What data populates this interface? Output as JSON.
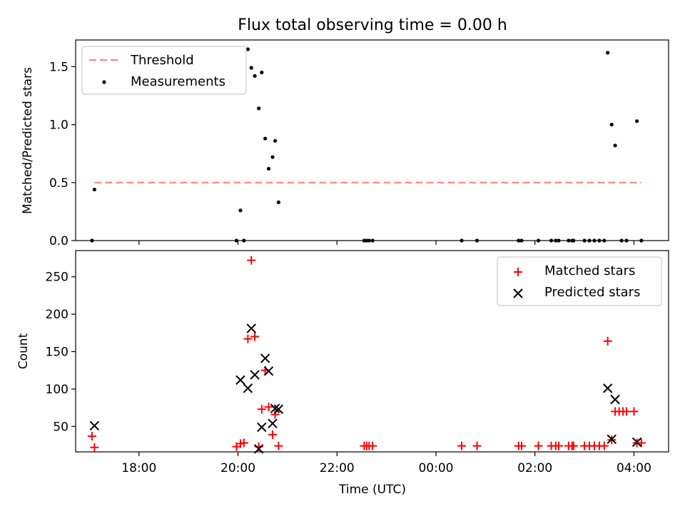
{
  "chart_data": [
    {
      "type": "scatter",
      "title": "Flux total observing time = 0.00 h",
      "ylabel": "Matched/Predicted stars",
      "xlabel": "",
      "xlim": [
        16.72,
        28.7
      ],
      "ylim": [
        0,
        1.73
      ],
      "yticks": [
        0.0,
        0.5,
        1.0,
        1.5
      ],
      "ytick_labels": [
        "0.0",
        "0.5",
        "1.0",
        "1.5"
      ],
      "legend_position": "upper left",
      "series": [
        {
          "name": "Threshold",
          "kind": "line",
          "color": "#ff7f7f",
          "style": "dashed",
          "x": [
            17.1,
            28.15
          ],
          "y": [
            0.5,
            0.5
          ]
        },
        {
          "name": "Measurements",
          "kind": "points",
          "color": "#000000",
          "points": [
            [
              17.05,
              0.0
            ],
            [
              17.1,
              0.44
            ],
            [
              19.97,
              0.0
            ],
            [
              20.05,
              0.26
            ],
            [
              20.12,
              0.0
            ],
            [
              20.2,
              1.65
            ],
            [
              20.27,
              1.49
            ],
            [
              20.34,
              1.42
            ],
            [
              20.42,
              1.14
            ],
            [
              20.48,
              1.45
            ],
            [
              20.55,
              0.88
            ],
            [
              20.62,
              0.62
            ],
            [
              20.7,
              0.72
            ],
            [
              20.75,
              0.86
            ],
            [
              20.82,
              0.33
            ],
            [
              22.55,
              0.0
            ],
            [
              22.6,
              0.0
            ],
            [
              22.65,
              0.0
            ],
            [
              22.72,
              0.0
            ],
            [
              24.52,
              0.0
            ],
            [
              24.83,
              0.0
            ],
            [
              25.67,
              0.0
            ],
            [
              25.73,
              0.0
            ],
            [
              26.07,
              0.0
            ],
            [
              26.33,
              0.0
            ],
            [
              26.42,
              0.0
            ],
            [
              26.48,
              0.0
            ],
            [
              26.68,
              0.0
            ],
            [
              26.75,
              0.0
            ],
            [
              26.78,
              0.0
            ],
            [
              27.0,
              0.0
            ],
            [
              27.1,
              0.0
            ],
            [
              27.2,
              0.0
            ],
            [
              27.3,
              0.0
            ],
            [
              27.4,
              0.0
            ],
            [
              27.47,
              1.62
            ],
            [
              27.55,
              1.0
            ],
            [
              27.62,
              0.82
            ],
            [
              27.75,
              0.0
            ],
            [
              27.85,
              0.0
            ],
            [
              28.06,
              1.03
            ],
            [
              28.15,
              0.0
            ]
          ]
        }
      ]
    },
    {
      "type": "scatter",
      "title": "",
      "ylabel": "Count",
      "xlabel": "Time (UTC)",
      "xlim": [
        16.72,
        28.7
      ],
      "ylim": [
        16,
        285
      ],
      "yticks": [
        50,
        100,
        150,
        200,
        250
      ],
      "ytick_labels": [
        "50",
        "100",
        "150",
        "200",
        "250"
      ],
      "xticks": [
        18,
        20,
        22,
        24,
        26,
        28
      ],
      "xtick_labels": [
        "18:00",
        "20:00",
        "22:00",
        "00:00",
        "02:00",
        "04:00"
      ],
      "legend_position": "upper right",
      "series": [
        {
          "name": "Matched stars",
          "marker": "plus",
          "color": "#ff0000",
          "points": [
            [
              17.05,
              37
            ],
            [
              17.1,
              22
            ],
            [
              19.97,
              23
            ],
            [
              20.05,
              27
            ],
            [
              20.12,
              28
            ],
            [
              20.2,
              167
            ],
            [
              20.27,
              272
            ],
            [
              20.34,
              170
            ],
            [
              20.42,
              23
            ],
            [
              20.48,
              73
            ],
            [
              20.55,
              125
            ],
            [
              20.62,
              76
            ],
            [
              20.7,
              39
            ],
            [
              20.75,
              66
            ],
            [
              20.82,
              24
            ],
            [
              22.55,
              24
            ],
            [
              22.6,
              24
            ],
            [
              22.65,
              24
            ],
            [
              22.72,
              24
            ],
            [
              24.52,
              24
            ],
            [
              24.83,
              24
            ],
            [
              25.67,
              24
            ],
            [
              25.73,
              24
            ],
            [
              26.07,
              24
            ],
            [
              26.33,
              24
            ],
            [
              26.42,
              24
            ],
            [
              26.48,
              24
            ],
            [
              26.68,
              24
            ],
            [
              26.75,
              24
            ],
            [
              26.78,
              24
            ],
            [
              27.0,
              24
            ],
            [
              27.1,
              24
            ],
            [
              27.2,
              24
            ],
            [
              27.3,
              24
            ],
            [
              27.4,
              24
            ],
            [
              27.47,
              164
            ],
            [
              27.55,
              32
            ],
            [
              27.62,
              70
            ],
            [
              27.7,
              70
            ],
            [
              27.78,
              70
            ],
            [
              27.85,
              70
            ],
            [
              28.0,
              70
            ],
            [
              28.06,
              28
            ],
            [
              28.15,
              28
            ]
          ]
        },
        {
          "name": "Predicted stars",
          "marker": "x",
          "color": "#000000",
          "points": [
            [
              17.1,
              51
            ],
            [
              20.05,
              112
            ],
            [
              20.2,
              101
            ],
            [
              20.27,
              181
            ],
            [
              20.34,
              119
            ],
            [
              20.42,
              20
            ],
            [
              20.48,
              49
            ],
            [
              20.55,
              141
            ],
            [
              20.62,
              124
            ],
            [
              20.7,
              54
            ],
            [
              20.75,
              74
            ],
            [
              20.82,
              73
            ],
            [
              27.47,
              101
            ],
            [
              27.55,
              33
            ],
            [
              27.62,
              86
            ],
            [
              28.06,
              29
            ]
          ]
        }
      ]
    }
  ]
}
